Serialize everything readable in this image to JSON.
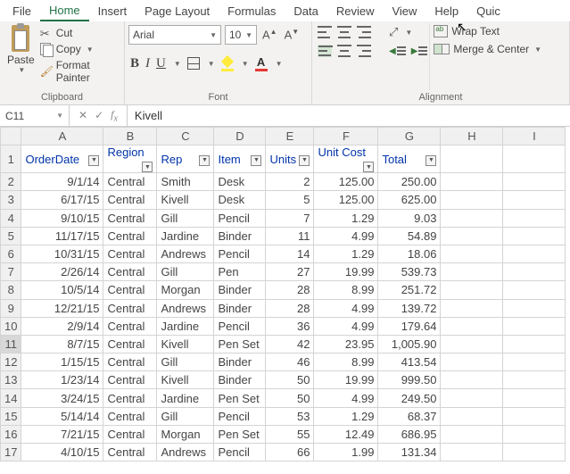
{
  "menu": {
    "items": [
      "File",
      "Home",
      "Insert",
      "Page Layout",
      "Formulas",
      "Data",
      "Review",
      "View",
      "Help",
      "Quic"
    ],
    "active": 1
  },
  "ribbon": {
    "clipboard": {
      "paste": "Paste",
      "cut": "Cut",
      "copy": "Copy",
      "fmt": "Format Painter",
      "label": "Clipboard"
    },
    "font": {
      "name": "Arial",
      "size": "10",
      "label": "Font"
    },
    "alignment": {
      "wrap": "Wrap Text",
      "merge": "Merge & Center",
      "label": "Alignment"
    }
  },
  "namebox": "C11",
  "formula": "Kivell",
  "columns": [
    "A",
    "B",
    "C",
    "D",
    "E",
    "F",
    "G",
    "H",
    "I"
  ],
  "headers": [
    "OrderDate",
    "Region",
    "Rep",
    "Item",
    "Units",
    "Unit Cost",
    "Total"
  ],
  "rows": [
    {
      "n": 2,
      "c": [
        "9/1/14",
        "Central",
        "Smith",
        "Desk",
        "2",
        "125.00",
        "250.00"
      ]
    },
    {
      "n": 3,
      "c": [
        "6/17/15",
        "Central",
        "Kivell",
        "Desk",
        "5",
        "125.00",
        "625.00"
      ]
    },
    {
      "n": 4,
      "c": [
        "9/10/15",
        "Central",
        "Gill",
        "Pencil",
        "7",
        "1.29",
        "9.03"
      ]
    },
    {
      "n": 5,
      "c": [
        "11/17/15",
        "Central",
        "Jardine",
        "Binder",
        "11",
        "4.99",
        "54.89"
      ]
    },
    {
      "n": 6,
      "c": [
        "10/31/15",
        "Central",
        "Andrews",
        "Pencil",
        "14",
        "1.29",
        "18.06"
      ]
    },
    {
      "n": 7,
      "c": [
        "2/26/14",
        "Central",
        "Gill",
        "Pen",
        "27",
        "19.99",
        "539.73"
      ]
    },
    {
      "n": 8,
      "c": [
        "10/5/14",
        "Central",
        "Morgan",
        "Binder",
        "28",
        "8.99",
        "251.72"
      ]
    },
    {
      "n": 9,
      "c": [
        "12/21/15",
        "Central",
        "Andrews",
        "Binder",
        "28",
        "4.99",
        "139.72"
      ]
    },
    {
      "n": 10,
      "c": [
        "2/9/14",
        "Central",
        "Jardine",
        "Pencil",
        "36",
        "4.99",
        "179.64"
      ]
    },
    {
      "n": 11,
      "c": [
        "8/7/15",
        "Central",
        "Kivell",
        "Pen Set",
        "42",
        "23.95",
        "1,005.90"
      ]
    },
    {
      "n": 12,
      "c": [
        "1/15/15",
        "Central",
        "Gill",
        "Binder",
        "46",
        "8.99",
        "413.54"
      ]
    },
    {
      "n": 13,
      "c": [
        "1/23/14",
        "Central",
        "Kivell",
        "Binder",
        "50",
        "19.99",
        "999.50"
      ]
    },
    {
      "n": 14,
      "c": [
        "3/24/15",
        "Central",
        "Jardine",
        "Pen Set",
        "50",
        "4.99",
        "249.50"
      ]
    },
    {
      "n": 15,
      "c": [
        "5/14/14",
        "Central",
        "Gill",
        "Pencil",
        "53",
        "1.29",
        "68.37"
      ]
    },
    {
      "n": 16,
      "c": [
        "7/21/15",
        "Central",
        "Morgan",
        "Pen Set",
        "55",
        "12.49",
        "686.95"
      ]
    },
    {
      "n": 17,
      "c": [
        "4/10/15",
        "Central",
        "Andrews",
        "Pencil",
        "66",
        "1.99",
        "131.34"
      ]
    }
  ],
  "selectedRow": 11
}
